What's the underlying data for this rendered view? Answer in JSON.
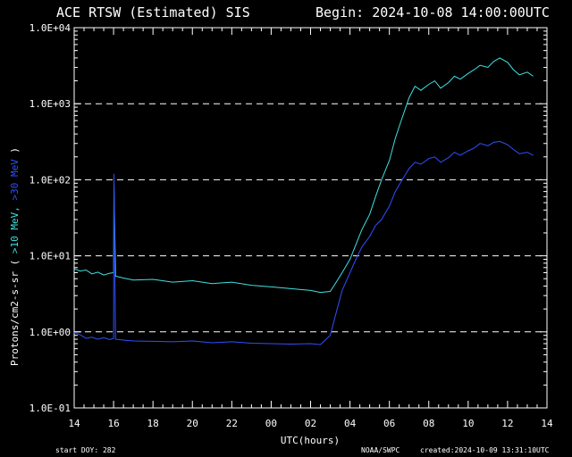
{
  "header": {
    "title": "ACE RTSW (Estimated) SIS",
    "begin": "Begin: 2024-10-08 14:00:00UTC"
  },
  "footer": {
    "start_doy": "start DOY:  282",
    "agency": "NOAA/SWPC",
    "created": "created:2024-10-09 13:31:10UTC"
  },
  "chart_data": {
    "type": "line",
    "xlabel": "UTC(hours)",
    "ylabel_prefix": "Protons/cm2-s-sr  ( ",
    "ylabel_series1": ">10 MeV,",
    "ylabel_series2": " >30 MeV",
    "ylabel_suffix": " )",
    "y_scale": "log",
    "ylim": [
      0.1,
      10000
    ],
    "xlim": [
      0,
      24
    ],
    "x_ticks": [
      "14",
      "16",
      "18",
      "20",
      "22",
      "00",
      "02",
      "04",
      "06",
      "08",
      "10",
      "12",
      "14"
    ],
    "y_ticks": [
      "1.0E-01",
      "1.0E+00",
      "1.0E+01",
      "1.0E+02",
      "1.0E+03",
      "1.0E+04"
    ],
    "gridlines_y": [
      1,
      10,
      100,
      1000
    ],
    "series": [
      {
        "color": "#40e0e0",
        "x": [
          0.0,
          0.3,
          0.6,
          0.9,
          1.2,
          1.5,
          1.8,
          2.0,
          2.02,
          2.1,
          2.5,
          3,
          4,
          5,
          6,
          7,
          8,
          9,
          10,
          11,
          12,
          12.5,
          13,
          13.3,
          13.6,
          14,
          14.3,
          14.6,
          15,
          15.3,
          15.6,
          16,
          16.3,
          16.6,
          17,
          17.3,
          17.6,
          18,
          18.3,
          18.6,
          19,
          19.3,
          19.6,
          20,
          20.3,
          20.6,
          21,
          21.3,
          21.6,
          22,
          22.3,
          22.6,
          23,
          23.3
        ],
        "y": [
          6.8,
          6.3,
          6.5,
          5.8,
          6.1,
          5.6,
          5.9,
          6.0,
          90,
          5.4,
          5.1,
          4.8,
          4.9,
          4.5,
          4.7,
          4.3,
          4.5,
          4.1,
          3.9,
          3.7,
          3.5,
          3.3,
          3.4,
          4.5,
          6,
          9,
          14,
          22,
          35,
          60,
          100,
          180,
          350,
          600,
          1200,
          1700,
          1500,
          1800,
          2000,
          1600,
          1900,
          2300,
          2100,
          2500,
          2800,
          3200,
          3000,
          3600,
          4000,
          3500,
          2800,
          2400,
          2600,
          2300
        ]
      },
      {
        "color": "#3050ff",
        "x": [
          0.0,
          0.3,
          0.6,
          0.9,
          1.2,
          1.5,
          1.8,
          2.0,
          2.02,
          2.1,
          2.5,
          3,
          4,
          5,
          6,
          7,
          8,
          9,
          10,
          11,
          12,
          12.5,
          13,
          13.3,
          13.6,
          14,
          14.3,
          14.6,
          15,
          15.3,
          15.6,
          16,
          16.3,
          16.6,
          17,
          17.3,
          17.6,
          18,
          18.3,
          18.6,
          19,
          19.3,
          19.6,
          20,
          20.3,
          20.6,
          21,
          21.3,
          21.6,
          22,
          22.3,
          22.6,
          23,
          23.3
        ],
        "y": [
          0.98,
          0.92,
          0.82,
          0.85,
          0.8,
          0.84,
          0.79,
          0.82,
          120,
          0.8,
          0.78,
          0.76,
          0.75,
          0.74,
          0.76,
          0.72,
          0.74,
          0.71,
          0.7,
          0.69,
          0.7,
          0.68,
          0.9,
          1.8,
          3.5,
          6,
          9,
          13,
          18,
          25,
          30,
          45,
          70,
          95,
          140,
          170,
          160,
          190,
          200,
          170,
          195,
          230,
          210,
          240,
          260,
          300,
          280,
          310,
          320,
          290,
          250,
          220,
          230,
          210
        ]
      }
    ]
  }
}
